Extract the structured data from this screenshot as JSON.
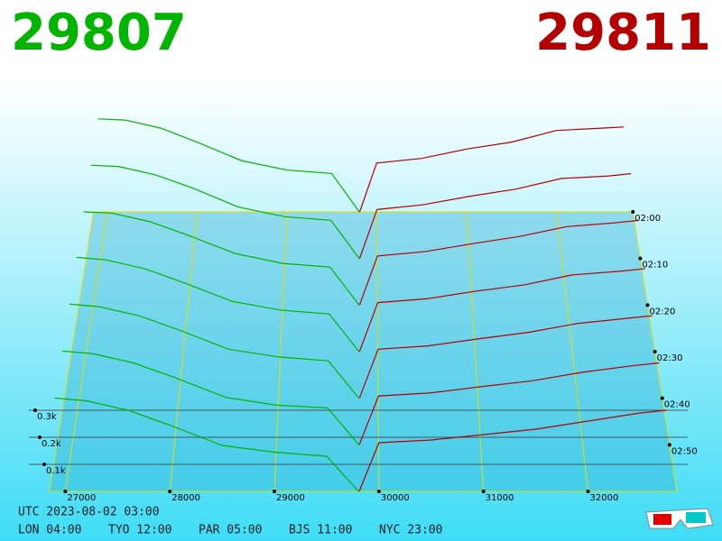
{
  "chart_data": {
    "type": "depth3d",
    "bid_price": 29807,
    "ask_price": 29811,
    "bid_color": "#00b400",
    "ask_color": "#b40000",
    "xlim": [
      26850,
      32850
    ],
    "xticks": [
      27000,
      28000,
      29000,
      30000,
      31000,
      32000
    ],
    "ylim": [
      0,
      400
    ],
    "yticks": [
      {
        "value": 100,
        "label": "0.1k"
      },
      {
        "value": 200,
        "label": "0.2k"
      },
      {
        "value": 300,
        "label": "0.3k"
      }
    ],
    "tlim": [
      120,
      180
    ],
    "tticks": [
      {
        "value": 120,
        "label": "02:00"
      },
      {
        "value": 130,
        "label": "02:10"
      },
      {
        "value": 140,
        "label": "02:20"
      },
      {
        "value": 150,
        "label": "02:30"
      },
      {
        "value": 160,
        "label": "02:40"
      },
      {
        "value": 170,
        "label": "02:50"
      }
    ],
    "bid_prices": [
      26900,
      27200,
      27600,
      28000,
      28500,
      29000,
      29500,
      29807
    ],
    "ask_prices": [
      29811,
      30000,
      30500,
      31000,
      31500,
      32000,
      32500,
      32750
    ],
    "snapshots": [
      {
        "t": 120,
        "bids": [
          400,
          395,
          360,
          300,
          220,
          180,
          165,
          0
        ],
        "asks": [
          0,
          210,
          230,
          270,
          300,
          350,
          360,
          365
        ]
      },
      {
        "t": 130,
        "bids": [
          390,
          385,
          350,
          295,
          215,
          175,
          160,
          0
        ],
        "asks": [
          0,
          205,
          225,
          260,
          290,
          335,
          345,
          355
        ]
      },
      {
        "t": 140,
        "bids": [
          380,
          375,
          340,
          285,
          210,
          170,
          155,
          0
        ],
        "asks": [
          0,
          200,
          218,
          250,
          280,
          320,
          335,
          345
        ]
      },
      {
        "t": 150,
        "bids": [
          375,
          365,
          330,
          275,
          200,
          165,
          150,
          0
        ],
        "asks": [
          0,
          195,
          210,
          240,
          265,
          305,
          320,
          330
        ]
      },
      {
        "t": 160,
        "bids": [
          365,
          355,
          320,
          265,
          190,
          160,
          145,
          0
        ],
        "asks": [
          0,
          190,
          203,
          230,
          255,
          290,
          310,
          320
        ]
      },
      {
        "t": 170,
        "bids": [
          355,
          345,
          310,
          255,
          180,
          150,
          140,
          0
        ],
        "asks": [
          0,
          185,
          196,
          220,
          242,
          275,
          300,
          310
        ]
      },
      {
        "t": 180,
        "bids": [
          345,
          335,
          300,
          245,
          170,
          145,
          130,
          0
        ],
        "asks": [
          0,
          180,
          190,
          210,
          230,
          260,
          290,
          300
        ]
      }
    ],
    "timestamp": "UTC 2023-08-02 03:00",
    "clocks": [
      "LON 04:00",
      "TYO 12:00",
      "PAR 05:00",
      "BJS 11:00",
      "NYC 23:00"
    ]
  }
}
